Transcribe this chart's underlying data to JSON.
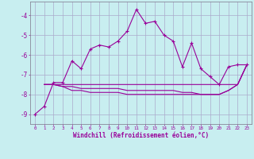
{
  "background_color": "#c8eef0",
  "grid_color": "#aaaacc",
  "line_color": "#990099",
  "xlim": [
    -0.5,
    23.5
  ],
  "ylim": [
    -9.5,
    -3.3
  ],
  "yticks": [
    -9,
    -8,
    -7,
    -6,
    -5,
    -4
  ],
  "xtick_labels": [
    "0",
    "1",
    "2",
    "3",
    "4",
    "5",
    "6",
    "7",
    "8",
    "9",
    "10",
    "11",
    "12",
    "13",
    "14",
    "15",
    "16",
    "17",
    "18",
    "19",
    "20",
    "21",
    "22",
    "23"
  ],
  "xlabel": "Windchill (Refroidissement éolien,°C)",
  "series": [
    {
      "x": [
        0,
        1,
        2,
        3,
        4,
        5,
        6,
        7,
        8,
        9,
        10,
        11,
        12,
        13,
        14,
        15,
        16,
        17,
        18,
        19,
        20,
        21,
        22,
        23
      ],
      "y": [
        -9.0,
        -8.6,
        -7.4,
        -7.4,
        -6.3,
        -6.7,
        -5.7,
        -5.5,
        -5.6,
        -5.3,
        -4.8,
        -3.7,
        -4.4,
        -4.3,
        -5.0,
        -5.3,
        -6.6,
        -5.4,
        -6.7,
        -7.1,
        -7.5,
        -6.6,
        -6.5,
        -6.5
      ],
      "marker": "+"
    },
    {
      "x": [
        1,
        2,
        3,
        4,
        5,
        6,
        7,
        8,
        9,
        10,
        11,
        12,
        13,
        14,
        15,
        16,
        17,
        18,
        19,
        20,
        21,
        22,
        23
      ],
      "y": [
        -7.5,
        -7.5,
        -7.5,
        -7.5,
        -7.5,
        -7.5,
        -7.5,
        -7.5,
        -7.5,
        -7.5,
        -7.5,
        -7.5,
        -7.5,
        -7.5,
        -7.5,
        -7.5,
        -7.5,
        -7.5,
        -7.5,
        -7.5,
        -7.5,
        -7.5,
        -6.5
      ],
      "marker": null
    },
    {
      "x": [
        1,
        2,
        3,
        4,
        5,
        6,
        7,
        8,
        9,
        10,
        11,
        12,
        13,
        14,
        15,
        16,
        17,
        18,
        19,
        20,
        21,
        22,
        23
      ],
      "y": [
        -7.5,
        -7.5,
        -7.6,
        -7.6,
        -7.7,
        -7.7,
        -7.7,
        -7.7,
        -7.7,
        -7.8,
        -7.8,
        -7.8,
        -7.8,
        -7.8,
        -7.8,
        -7.9,
        -7.9,
        -8.0,
        -8.0,
        -8.0,
        -7.8,
        -7.5,
        -6.5
      ],
      "marker": null
    },
    {
      "x": [
        1,
        2,
        3,
        4,
        5,
        6,
        7,
        8,
        9,
        10,
        11,
        12,
        13,
        14,
        15,
        16,
        17,
        18,
        19,
        20,
        21,
        22,
        23
      ],
      "y": [
        -7.5,
        -7.5,
        -7.6,
        -7.8,
        -7.8,
        -7.9,
        -7.9,
        -7.9,
        -7.9,
        -8.0,
        -8.0,
        -8.0,
        -8.0,
        -8.0,
        -8.0,
        -8.0,
        -8.0,
        -8.0,
        -8.0,
        -8.0,
        -7.8,
        -7.5,
        -6.5
      ],
      "marker": null
    }
  ]
}
